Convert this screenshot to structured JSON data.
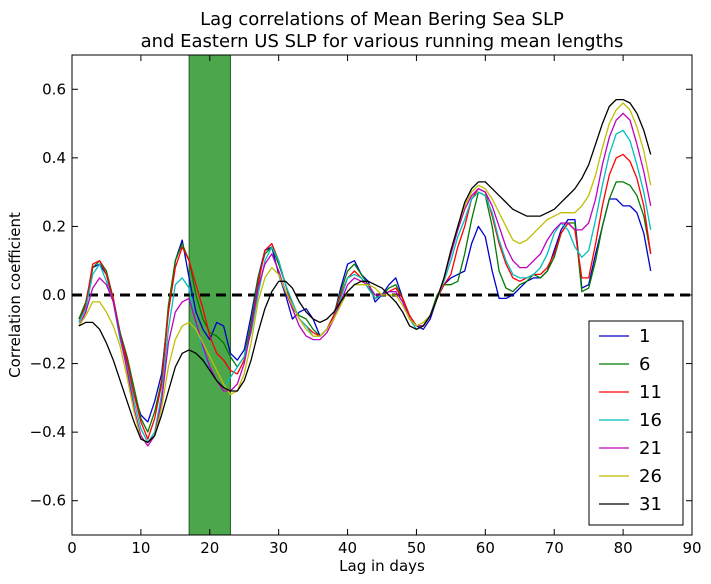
{
  "chart_data": {
    "type": "line",
    "title": "Lag correlations of Mean Bering Sea SLP",
    "subtitle": "and Eastern US SLP for various running mean lengths",
    "xlabel": "Lag in days",
    "ylabel": "Correlation coefficient",
    "xlim": [
      0,
      90
    ],
    "ylim": [
      -0.7,
      0.7
    ],
    "xticks": [
      0,
      10,
      20,
      30,
      40,
      50,
      60,
      70,
      80,
      90
    ],
    "xtick_labels": [
      "0",
      "10",
      "20",
      "30",
      "40",
      "50",
      "60",
      "70",
      "80",
      "90"
    ],
    "yticks": [
      -0.6,
      -0.4,
      -0.2,
      0.0,
      0.2,
      0.4,
      0.6
    ],
    "ytick_labels": [
      "−0.6",
      "−0.4",
      "−0.2",
      "0.0",
      "0.2",
      "0.4",
      "0.6"
    ],
    "grid": false,
    "legend_position": "lower-right",
    "zero_line": {
      "y": 0.0,
      "style": "dashed",
      "color": "#000000"
    },
    "highlight_band": {
      "x_start": 17,
      "x_end": 23,
      "color": "#4ca64c"
    },
    "x": [
      1,
      2,
      3,
      4,
      5,
      6,
      7,
      8,
      9,
      10,
      11,
      12,
      13,
      14,
      15,
      16,
      17,
      18,
      19,
      20,
      21,
      22,
      23,
      24,
      25,
      26,
      27,
      28,
      29,
      30,
      31,
      32,
      33,
      34,
      35,
      36,
      37,
      38,
      39,
      40,
      41,
      42,
      43,
      44,
      45,
      46,
      47,
      48,
      49,
      50,
      51,
      52,
      53,
      54,
      55,
      56,
      57,
      58,
      59,
      60,
      61,
      62,
      63,
      64,
      65,
      66,
      67,
      68,
      69,
      70,
      71,
      72,
      73,
      74,
      75,
      76,
      77,
      78,
      79,
      80,
      81,
      82,
      83,
      84
    ],
    "series": [
      {
        "name": "1",
        "color": "#0000cc",
        "values": [
          -0.07,
          -0.03,
          0.08,
          0.09,
          0.06,
          -0.02,
          -0.13,
          -0.2,
          -0.29,
          -0.35,
          -0.37,
          -0.31,
          -0.23,
          -0.05,
          0.1,
          0.16,
          0.05,
          -0.05,
          -0.1,
          -0.13,
          -0.08,
          -0.09,
          -0.17,
          -0.19,
          -0.16,
          -0.06,
          0.05,
          0.13,
          0.14,
          0.06,
          0.0,
          -0.07,
          -0.05,
          -0.04,
          -0.07,
          -0.12,
          -0.1,
          -0.06,
          0.02,
          0.09,
          0.1,
          0.06,
          0.04,
          -0.02,
          0.0,
          0.03,
          0.05,
          -0.01,
          -0.07,
          -0.09,
          -0.1,
          -0.07,
          -0.01,
          0.03,
          0.05,
          0.06,
          0.07,
          0.15,
          0.2,
          0.17,
          0.07,
          -0.01,
          -0.01,
          0.0,
          0.02,
          0.04,
          0.05,
          0.05,
          0.07,
          0.13,
          0.19,
          0.22,
          0.22,
          0.02,
          0.03,
          0.12,
          0.2,
          0.28,
          0.28,
          0.26,
          0.26,
          0.24,
          0.18,
          0.07
        ]
      },
      {
        "name": "6",
        "color": "#007a00",
        "values": [
          -0.07,
          -0.02,
          0.08,
          0.1,
          0.07,
          -0.01,
          -0.11,
          -0.18,
          -0.27,
          -0.36,
          -0.4,
          -0.34,
          -0.25,
          -0.03,
          0.1,
          0.15,
          0.1,
          0.0,
          -0.07,
          -0.11,
          -0.12,
          -0.14,
          -0.18,
          -0.21,
          -0.18,
          -0.08,
          0.05,
          0.12,
          0.14,
          0.09,
          0.03,
          -0.04,
          -0.06,
          -0.07,
          -0.1,
          -0.12,
          -0.1,
          -0.06,
          0.01,
          0.07,
          0.09,
          0.06,
          0.03,
          -0.01,
          0.0,
          0.02,
          0.03,
          -0.01,
          -0.06,
          -0.09,
          -0.09,
          -0.06,
          0.0,
          0.03,
          0.03,
          0.04,
          0.12,
          0.22,
          0.3,
          0.29,
          0.2,
          0.07,
          0.02,
          0.01,
          0.03,
          0.04,
          0.06,
          0.05,
          0.07,
          0.11,
          0.18,
          0.21,
          0.21,
          0.01,
          0.02,
          0.1,
          0.2,
          0.28,
          0.33,
          0.33,
          0.32,
          0.29,
          0.23,
          0.12
        ]
      },
      {
        "name": "11",
        "color": "#ff0000",
        "values": [
          -0.08,
          -0.03,
          0.09,
          0.1,
          0.06,
          -0.01,
          -0.12,
          -0.19,
          -0.29,
          -0.37,
          -0.42,
          -0.36,
          -0.26,
          -0.05,
          0.08,
          0.14,
          0.1,
          0.03,
          -0.04,
          -0.12,
          -0.17,
          -0.19,
          -0.22,
          -0.23,
          -0.19,
          -0.1,
          0.03,
          0.13,
          0.15,
          0.1,
          0.03,
          -0.03,
          -0.07,
          -0.09,
          -0.11,
          -0.12,
          -0.1,
          -0.06,
          0.0,
          0.05,
          0.07,
          0.05,
          0.02,
          -0.01,
          0.0,
          0.01,
          0.02,
          -0.01,
          -0.06,
          -0.09,
          -0.09,
          -0.06,
          -0.01,
          0.03,
          0.06,
          0.14,
          0.2,
          0.28,
          0.31,
          0.3,
          0.23,
          0.15,
          0.09,
          0.05,
          0.04,
          0.05,
          0.06,
          0.06,
          0.08,
          0.12,
          0.18,
          0.21,
          0.19,
          0.05,
          0.05,
          0.15,
          0.26,
          0.35,
          0.4,
          0.41,
          0.39,
          0.34,
          0.26,
          0.12
        ]
      },
      {
        "name": "16",
        "color": "#00bfbf",
        "values": [
          -0.08,
          -0.04,
          0.06,
          0.09,
          0.04,
          -0.02,
          -0.13,
          -0.21,
          -0.31,
          -0.39,
          -0.43,
          -0.4,
          -0.29,
          -0.1,
          0.03,
          0.05,
          0.02,
          -0.09,
          -0.16,
          -0.22,
          -0.25,
          -0.27,
          -0.24,
          -0.21,
          -0.18,
          -0.11,
          0.0,
          0.1,
          0.14,
          0.1,
          0.03,
          -0.02,
          -0.07,
          -0.09,
          -0.12,
          -0.12,
          -0.1,
          -0.07,
          -0.01,
          0.05,
          0.06,
          0.05,
          0.02,
          -0.01,
          0.0,
          0.01,
          0.01,
          -0.02,
          -0.07,
          -0.1,
          -0.09,
          -0.06,
          -0.01,
          0.04,
          0.1,
          0.17,
          0.22,
          0.28,
          0.3,
          0.29,
          0.24,
          0.16,
          0.1,
          0.06,
          0.05,
          0.05,
          0.06,
          0.08,
          0.12,
          0.18,
          0.21,
          0.19,
          0.14,
          0.11,
          0.13,
          0.22,
          0.32,
          0.41,
          0.47,
          0.48,
          0.45,
          0.38,
          0.3,
          0.19
        ]
      },
      {
        "name": "21",
        "color": "#bf00bf",
        "values": [
          -0.09,
          -0.05,
          0.02,
          0.05,
          0.03,
          -0.02,
          -0.12,
          -0.22,
          -0.33,
          -0.41,
          -0.44,
          -0.41,
          -0.31,
          -0.14,
          -0.05,
          -0.02,
          -0.01,
          -0.08,
          -0.15,
          -0.21,
          -0.25,
          -0.28,
          -0.28,
          -0.26,
          -0.2,
          -0.1,
          0.02,
          0.09,
          0.12,
          0.07,
          0.01,
          -0.04,
          -0.09,
          -0.12,
          -0.13,
          -0.13,
          -0.11,
          -0.07,
          -0.02,
          0.03,
          0.05,
          0.04,
          0.03,
          0.0,
          0.0,
          0.01,
          0.01,
          -0.02,
          -0.07,
          -0.09,
          -0.09,
          -0.06,
          -0.01,
          0.05,
          0.12,
          0.19,
          0.25,
          0.29,
          0.31,
          0.3,
          0.26,
          0.2,
          0.14,
          0.1,
          0.08,
          0.08,
          0.1,
          0.12,
          0.16,
          0.19,
          0.21,
          0.21,
          0.19,
          0.19,
          0.21,
          0.28,
          0.38,
          0.46,
          0.51,
          0.53,
          0.51,
          0.44,
          0.36,
          0.26
        ]
      },
      {
        "name": "26",
        "color": "#bfbf00",
        "values": [
          -0.09,
          -0.06,
          -0.02,
          -0.02,
          -0.05,
          -0.09,
          -0.15,
          -0.24,
          -0.34,
          -0.42,
          -0.43,
          -0.41,
          -0.33,
          -0.21,
          -0.13,
          -0.09,
          -0.08,
          -0.1,
          -0.14,
          -0.18,
          -0.22,
          -0.26,
          -0.29,
          -0.28,
          -0.23,
          -0.14,
          -0.02,
          0.05,
          0.08,
          0.06,
          0.01,
          -0.03,
          -0.07,
          -0.1,
          -0.12,
          -0.12,
          -0.1,
          -0.07,
          -0.03,
          0.01,
          0.03,
          0.03,
          0.03,
          0.02,
          0.0,
          0.0,
          0.0,
          -0.03,
          -0.07,
          -0.09,
          -0.08,
          -0.06,
          -0.01,
          0.05,
          0.13,
          0.2,
          0.26,
          0.3,
          0.32,
          0.31,
          0.28,
          0.24,
          0.2,
          0.16,
          0.15,
          0.16,
          0.18,
          0.2,
          0.22,
          0.23,
          0.24,
          0.24,
          0.24,
          0.26,
          0.29,
          0.35,
          0.43,
          0.5,
          0.54,
          0.56,
          0.54,
          0.49,
          0.42,
          0.32
        ]
      },
      {
        "name": "31",
        "color": "#000000",
        "values": [
          -0.09,
          -0.08,
          -0.08,
          -0.1,
          -0.14,
          -0.19,
          -0.25,
          -0.31,
          -0.37,
          -0.42,
          -0.43,
          -0.41,
          -0.35,
          -0.28,
          -0.21,
          -0.17,
          -0.16,
          -0.17,
          -0.19,
          -0.22,
          -0.25,
          -0.27,
          -0.28,
          -0.28,
          -0.25,
          -0.19,
          -0.11,
          -0.04,
          0.01,
          0.04,
          0.04,
          0.02,
          -0.02,
          -0.05,
          -0.07,
          -0.08,
          -0.07,
          -0.05,
          -0.02,
          0.01,
          0.03,
          0.04,
          0.04,
          0.03,
          0.02,
          0.0,
          -0.02,
          -0.05,
          -0.09,
          -0.1,
          -0.09,
          -0.06,
          -0.01,
          0.05,
          0.13,
          0.2,
          0.27,
          0.31,
          0.33,
          0.33,
          0.31,
          0.29,
          0.27,
          0.25,
          0.24,
          0.23,
          0.23,
          0.23,
          0.24,
          0.25,
          0.27,
          0.29,
          0.31,
          0.34,
          0.38,
          0.44,
          0.5,
          0.55,
          0.57,
          0.57,
          0.56,
          0.53,
          0.48,
          0.41
        ]
      }
    ]
  }
}
